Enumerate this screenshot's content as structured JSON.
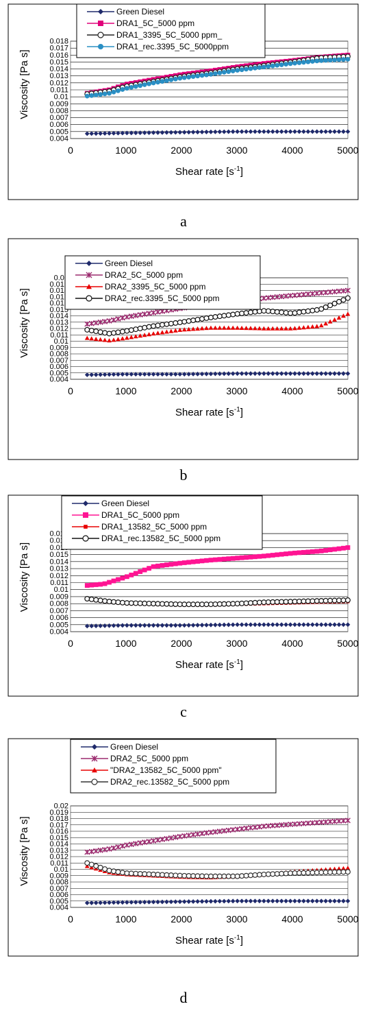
{
  "chart_data": [
    {
      "type": "scatter",
      "caption": "a",
      "xlabel": "Shear rate [s",
      "xlabel_sup": "-1",
      "xlabel_end": "]",
      "ylabel": "Viscosity [Pa s]",
      "xlim": [
        0,
        5000
      ],
      "ylim": [
        0.004,
        0.018
      ],
      "x_ticks": [
        0,
        1000,
        2000,
        3000,
        4000,
        5000
      ],
      "y_ticks": [
        0.004,
        0.005,
        0.006,
        0.007,
        0.008,
        0.009,
        0.01,
        0.011,
        0.012,
        0.013,
        0.014,
        0.015,
        0.016,
        0.017,
        0.018
      ],
      "legend": "top",
      "series": [
        {
          "name": "Green Diesel",
          "color": "#1f2a6b",
          "marker": "diamond",
          "x": [
            300,
            1000,
            2000,
            3000,
            4000,
            5000
          ],
          "y": [
            0.0047,
            0.0048,
            0.0049,
            0.005,
            0.005,
            0.005
          ]
        },
        {
          "name": "DRA1_5C_5000 ppm",
          "color": "#e0007a",
          "marker": "square",
          "x": [
            300,
            700,
            1000,
            1500,
            2000,
            2500,
            3000,
            3500,
            4000,
            4500,
            5000
          ],
          "y": [
            0.0105,
            0.011,
            0.0118,
            0.0125,
            0.0132,
            0.0137,
            0.0143,
            0.0148,
            0.0152,
            0.0157,
            0.016
          ]
        },
        {
          "name": "DRA1_3395_5C_5000 ppm_",
          "color": "#222222",
          "marker": "circle-open",
          "x": [
            300,
            700,
            1000,
            1500,
            2000,
            2500,
            3000,
            3500,
            4000,
            4500,
            5000
          ],
          "y": [
            0.0104,
            0.0108,
            0.0115,
            0.0122,
            0.0129,
            0.0134,
            0.014,
            0.0145,
            0.015,
            0.0156,
            0.0158
          ]
        },
        {
          "name": "DRA1_rec.3395_5C_5000ppm",
          "color": "#2a8fc4",
          "marker": "circle",
          "x": [
            300,
            700,
            1000,
            1500,
            2000,
            2500,
            3000,
            3500,
            4000,
            4500,
            5000
          ],
          "y": [
            0.0101,
            0.0105,
            0.0112,
            0.012,
            0.0127,
            0.0132,
            0.0138,
            0.0143,
            0.0148,
            0.0152,
            0.0154
          ]
        }
      ]
    },
    {
      "type": "scatter",
      "caption": "b",
      "xlabel": "Shear rate [s",
      "xlabel_sup": "-1",
      "xlabel_end": "]",
      "ylabel": "Viscosity [Pa s]",
      "xlim": [
        0,
        5000
      ],
      "ylim": [
        0.004,
        0.02
      ],
      "x_ticks": [
        0,
        1000,
        2000,
        3000,
        4000,
        5000
      ],
      "y_ticks": [
        0.004,
        0.005,
        0.006,
        0.007,
        0.008,
        0.009,
        0.01,
        0.011,
        0.012,
        0.013,
        0.014,
        0.015,
        0.016,
        0.017,
        0.018,
        0.019,
        0.02
      ],
      "legend": "top",
      "series": [
        {
          "name": "Green Diesel",
          "color": "#1f2a6b",
          "marker": "diamond",
          "x": [
            300,
            1000,
            2000,
            3000,
            4000,
            5000
          ],
          "y": [
            0.0047,
            0.0048,
            0.0048,
            0.0049,
            0.0049,
            0.0049
          ]
        },
        {
          "name": "DRA2_5C_5000 ppm",
          "color": "#9b2a6e",
          "marker": "star",
          "x": [
            300,
            700,
            1000,
            1500,
            2000,
            2500,
            3000,
            3500,
            4000,
            4500,
            5000
          ],
          "y": [
            0.0127,
            0.0132,
            0.0138,
            0.0145,
            0.0152,
            0.0158,
            0.0163,
            0.0168,
            0.0172,
            0.0176,
            0.018
          ]
        },
        {
          "name": "DRA2_3395_5C_5000 ppm",
          "color": "#e80000",
          "marker": "triangle",
          "x": [
            300,
            700,
            1000,
            1500,
            2000,
            2500,
            3000,
            3500,
            4000,
            4500,
            5000
          ],
          "y": [
            0.0105,
            0.0101,
            0.0105,
            0.0112,
            0.0118,
            0.0121,
            0.0121,
            0.012,
            0.012,
            0.0124,
            0.0143
          ]
        },
        {
          "name": "DRA2_rec.3395_5C_5000 ppm",
          "color": "#111111",
          "marker": "circle-open",
          "x": [
            300,
            700,
            1000,
            1500,
            2000,
            2500,
            3000,
            3500,
            4000,
            4500,
            5000
          ],
          "y": [
            0.0118,
            0.0112,
            0.0116,
            0.0124,
            0.013,
            0.0137,
            0.0143,
            0.0148,
            0.0144,
            0.015,
            0.0168
          ]
        }
      ]
    },
    {
      "type": "scatter",
      "caption": "c",
      "xlabel": "Shear rate [s",
      "xlabel_sup": "-1",
      "xlabel_end": "]",
      "ylabel": "Viscosity [Pa s]",
      "xlim": [
        0,
        5000
      ],
      "ylim": [
        0.004,
        0.018
      ],
      "x_ticks": [
        0,
        1000,
        2000,
        3000,
        4000,
        5000
      ],
      "y_ticks": [
        0.004,
        0.005,
        0.006,
        0.007,
        0.008,
        0.009,
        0.01,
        0.011,
        0.012,
        0.013,
        0.014,
        0.015,
        0.016,
        0.017,
        0.018
      ],
      "legend": "top",
      "series": [
        {
          "name": "Green Diesel",
          "color": "#1f2a6b",
          "marker": "diamond",
          "x": [
            300,
            1000,
            2000,
            3000,
            4000,
            5000
          ],
          "y": [
            0.0048,
            0.0049,
            0.0049,
            0.005,
            0.005,
            0.005
          ]
        },
        {
          "name": "DRA1_5C_5000 ppm",
          "color": "#ff1493",
          "marker": "square",
          "x": [
            300,
            600,
            1000,
            1500,
            2000,
            2500,
            3000,
            3500,
            4000,
            4500,
            5000
          ],
          "y": [
            0.0106,
            0.0108,
            0.0118,
            0.0133,
            0.0138,
            0.0142,
            0.0145,
            0.0148,
            0.0152,
            0.0155,
            0.016
          ]
        },
        {
          "name": "DRA1_13582_5C_5000 ppm",
          "color": "#e80000",
          "marker": "square-small",
          "x": [
            300,
            700,
            1000,
            1500,
            2000,
            2500,
            3000,
            3500,
            4000,
            4500,
            5000
          ],
          "y": [
            0.0086,
            0.0082,
            0.008,
            0.0079,
            0.0078,
            0.0078,
            0.0079,
            0.008,
            0.0081,
            0.0082,
            0.0083
          ]
        },
        {
          "name": "DRA1_rec.13582_5C_5000 ppm",
          "color": "#111111",
          "marker": "circle-open",
          "x": [
            300,
            700,
            1000,
            1500,
            2000,
            2500,
            3000,
            3500,
            4000,
            4500,
            5000
          ],
          "y": [
            0.0087,
            0.0083,
            0.0081,
            0.008,
            0.0079,
            0.0079,
            0.008,
            0.0082,
            0.0083,
            0.0084,
            0.0085
          ]
        }
      ]
    },
    {
      "type": "scatter",
      "caption": "d",
      "xlabel": "Shear rate [s",
      "xlabel_sup": "-1",
      "xlabel_end": "]",
      "ylabel": "Viscosity [Pa s]",
      "xlim": [
        0,
        5000
      ],
      "ylim": [
        0.004,
        0.02
      ],
      "x_ticks": [
        0,
        1000,
        2000,
        3000,
        4000,
        5000
      ],
      "y_ticks": [
        0.004,
        0.005,
        0.006,
        0.007,
        0.008,
        0.009,
        0.01,
        0.011,
        0.012,
        0.013,
        0.014,
        0.015,
        0.016,
        0.017,
        0.018,
        0.019,
        0.02
      ],
      "legend": "top",
      "series": [
        {
          "name": "Green Diesel",
          "color": "#1f2a6b",
          "marker": "diamond",
          "x": [
            300,
            1000,
            2000,
            3000,
            4000,
            5000
          ],
          "y": [
            0.0047,
            0.0048,
            0.0049,
            0.005,
            0.005,
            0.005
          ]
        },
        {
          "name": "DRA2_5C_5000 ppm",
          "color": "#9b2a6e",
          "marker": "star",
          "x": [
            300,
            700,
            1000,
            1500,
            2000,
            2500,
            3000,
            3500,
            4000,
            4500,
            5000
          ],
          "y": [
            0.0127,
            0.0132,
            0.0138,
            0.0145,
            0.0152,
            0.0158,
            0.0163,
            0.0168,
            0.0171,
            0.0174,
            0.0177
          ]
        },
        {
          "name": "\"DRA2_13582_5C_5000 ppm\"",
          "color": "#e80000",
          "marker": "triangle",
          "x": [
            300,
            700,
            1000,
            1500,
            2000,
            2500,
            3000,
            3500,
            4000,
            4500,
            5000
          ],
          "y": [
            0.0105,
            0.0095,
            0.0092,
            0.009,
            0.0088,
            0.0087,
            0.0089,
            0.0092,
            0.0096,
            0.0099,
            0.0102
          ]
        },
        {
          "name": "DRA2_rec.13582_5C_5000 ppm",
          "color": "#333333",
          "marker": "circle-open",
          "x": [
            300,
            700,
            1000,
            1500,
            2000,
            2500,
            3000,
            3500,
            4000,
            4500,
            5000
          ],
          "y": [
            0.011,
            0.0098,
            0.0094,
            0.0092,
            0.009,
            0.0089,
            0.0089,
            0.0092,
            0.0094,
            0.0095,
            0.0096
          ]
        }
      ]
    }
  ]
}
